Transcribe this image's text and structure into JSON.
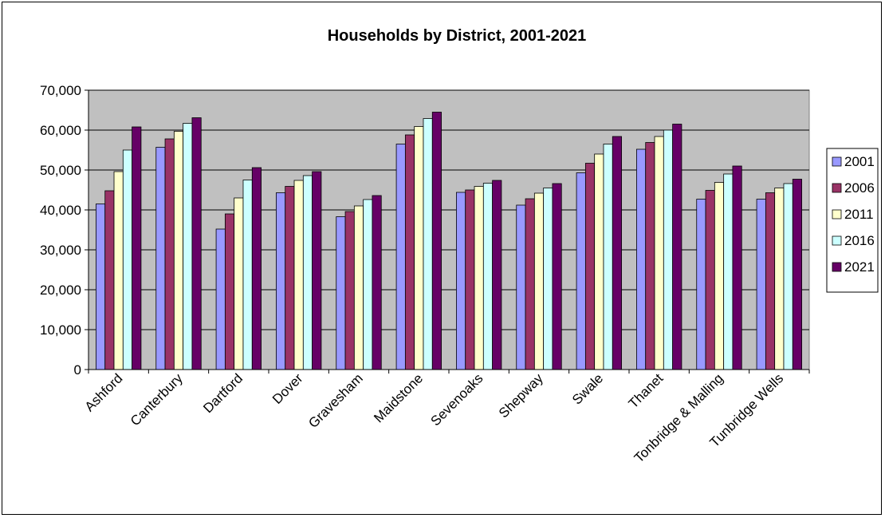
{
  "chart_data": {
    "type": "bar",
    "title": "Households by District, 2001-2021",
    "xlabel": "",
    "ylabel": "",
    "ylim": [
      0,
      70000
    ],
    "yticks": [
      0,
      10000,
      20000,
      30000,
      40000,
      50000,
      60000,
      70000
    ],
    "ytick_labels": [
      "0",
      "10,000",
      "20,000",
      "30,000",
      "40,000",
      "50,000",
      "60,000",
      "70,000"
    ],
    "grid": true,
    "legend_position": "right",
    "plot_background": "#c0c0c0",
    "categories": [
      "Ashford",
      "Canterbury",
      "Dartford",
      "Dover",
      "Gravesham",
      "Maidstone",
      "Sevenoaks",
      "Shepway",
      "Swale",
      "Thanet",
      "Tonbridge & Malling",
      "Tunbridge Wells"
    ],
    "series": [
      {
        "name": "2001",
        "color": "#9999ff",
        "values": [
          41500,
          55700,
          35200,
          44300,
          38300,
          56500,
          44400,
          41200,
          49300,
          55200,
          42700,
          42700
        ]
      },
      {
        "name": "2006",
        "color": "#993366",
        "values": [
          44800,
          57800,
          39000,
          45900,
          39600,
          58800,
          45000,
          42800,
          51700,
          56900,
          44900,
          44300
        ]
      },
      {
        "name": "2011",
        "color": "#ffffcc",
        "values": [
          49600,
          59700,
          43000,
          47400,
          41000,
          60900,
          45900,
          44200,
          54000,
          58400,
          46900,
          45500
        ]
      },
      {
        "name": "2016",
        "color": "#ccffff",
        "values": [
          55000,
          61700,
          47500,
          48600,
          42600,
          62900,
          46700,
          45500,
          56500,
          60000,
          49000,
          46600
        ]
      },
      {
        "name": "2021",
        "color": "#660066",
        "values": [
          60800,
          63100,
          50600,
          49600,
          43600,
          64500,
          47400,
          46600,
          58400,
          61500,
          51000,
          47700
        ]
      }
    ]
  }
}
